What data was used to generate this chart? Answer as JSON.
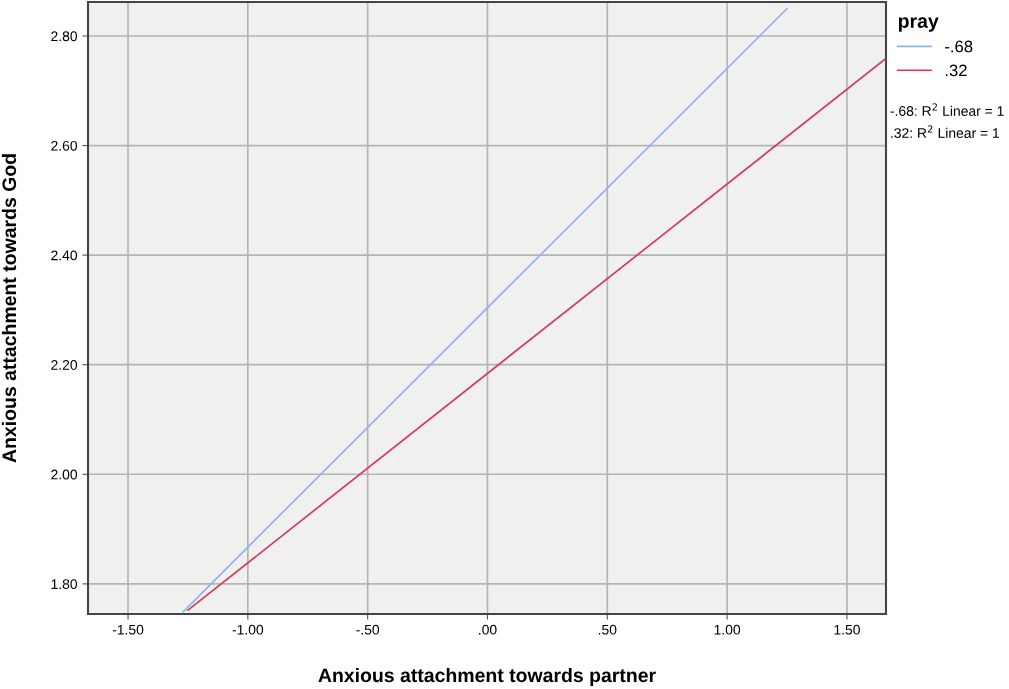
{
  "chart_data": {
    "type": "line",
    "xlabel": "Anxious attachment towards partner",
    "ylabel": "Anxious attachment towards God",
    "legend_title": "pray",
    "series": [
      {
        "name": "-.68",
        "color": "#8db4e8",
        "x": [
          -1.27,
          1.25
        ],
        "values": [
          1.749,
          2.85
        ]
      },
      {
        "name": ".32",
        "color": "#d6395a",
        "x": [
          -1.25,
          1.66
        ],
        "values": [
          1.752,
          2.758
        ]
      }
    ],
    "xlim": [
      -1.667,
      1.663
    ],
    "xticks": [
      {
        "value": -1.5,
        "label": "-1.50"
      },
      {
        "value": -1.0,
        "label": "-1.00"
      },
      {
        "value": -0.5,
        "label": "-.50"
      },
      {
        "value": 0,
        "label": ".00"
      },
      {
        "value": 0.5,
        "label": ".50"
      },
      {
        "value": 1.0,
        "label": "1.00"
      },
      {
        "value": 1.5,
        "label": "1.50"
      }
    ],
    "ylim": [
      1.745,
      2.862
    ],
    "yticks": [
      {
        "value": 1.8,
        "label": "1.80"
      },
      {
        "value": 2.0,
        "label": "2.00"
      },
      {
        "value": 2.2,
        "label": "2.20"
      },
      {
        "value": 2.4,
        "label": "2.40"
      },
      {
        "value": 2.6,
        "label": "2.60"
      },
      {
        "value": 2.8,
        "label": "2.80"
      }
    ],
    "grid": true,
    "legend": "top right",
    "marker": "none",
    "line_style": "solid",
    "annotations": [
      "-.68: R$^{2}$ Linear = 1",
      ".32: R$^{2}$ Linear = 1"
    ]
  }
}
